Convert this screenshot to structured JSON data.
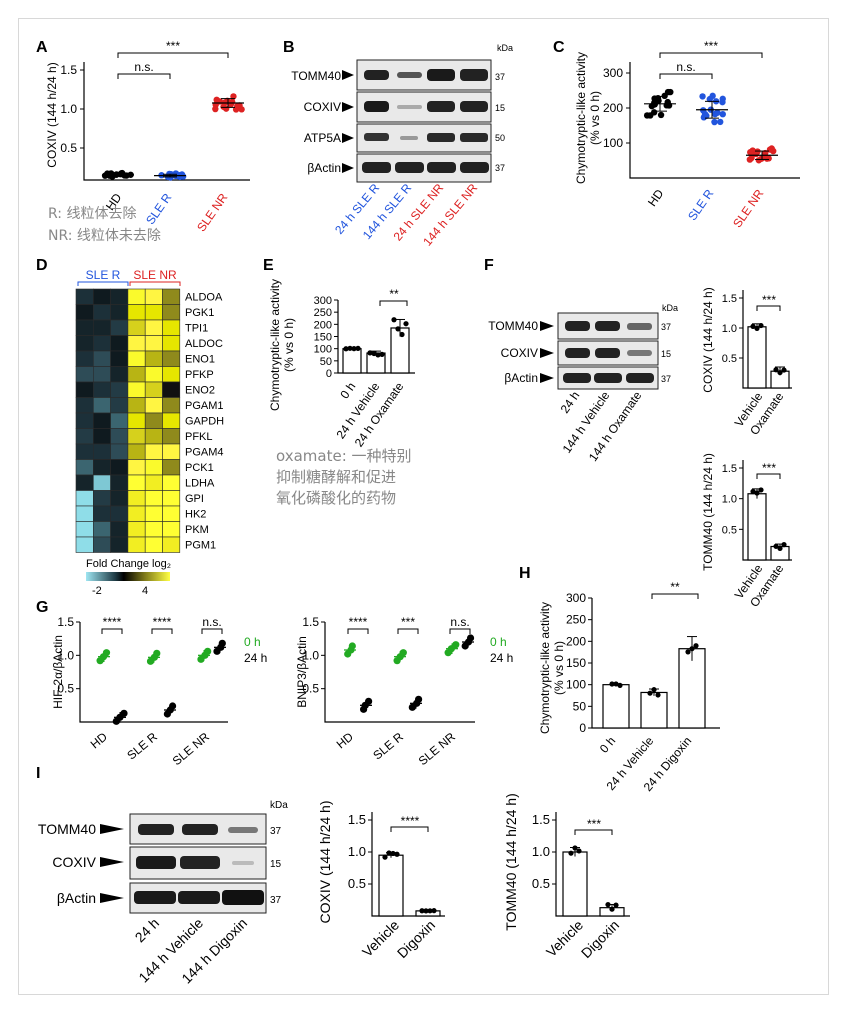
{
  "panels": {
    "A": {
      "label": "A",
      "ylabel": "COXIV (144 h/24 h)",
      "yticks": [
        "0.5",
        "1.0",
        "1.5"
      ],
      "categories": [
        "HD",
        "SLE R",
        "SLE NR"
      ],
      "category_colors": [
        "#000000",
        "#2255dd",
        "#dd2222"
      ],
      "sig": [
        "n.s.",
        "***"
      ],
      "note_lines": [
        "R: 线粒体去除",
        "NR: 线粒体未去除"
      ]
    },
    "B": {
      "label": "B",
      "kda": "kDa",
      "rows": [
        {
          "name": "TOMM40",
          "kda": "37"
        },
        {
          "name": "COXIV",
          "kda": "15"
        },
        {
          "name": "ATP5A",
          "kda": "50"
        },
        {
          "name": "βActin",
          "kda": "37"
        }
      ],
      "lanes": [
        "24 h SLE R",
        "144 h SLE R",
        "24 h SLE NR",
        "144 h SLE NR"
      ]
    },
    "C": {
      "label": "C",
      "ylabel_lines": [
        "Chymotryptic-like activity",
        "(% vs 0 h)"
      ],
      "yticks": [
        "100",
        "200",
        "300"
      ],
      "categories": [
        "HD",
        "SLE R",
        "SLE NR"
      ],
      "sig": [
        "n.s.",
        "***"
      ]
    },
    "D": {
      "label": "D",
      "group_labels": [
        "SLE R",
        "SLE NR"
      ],
      "genes": [
        "ALDOA",
        "PGK1",
        "TPI1",
        "ALDOC",
        "ENO1",
        "PFKP",
        "ENO2",
        "PGAM1",
        "GAPDH",
        "PFKL",
        "PGAM4",
        "PCK1",
        "LDHA",
        "GPI",
        "HK2",
        "PKM",
        "PGM1"
      ],
      "legend_title": "Fold Change log₂",
      "legend_ticks": [
        "-2",
        "4"
      ]
    },
    "E": {
      "label": "E",
      "ylabel_lines": [
        "Chymotryptic-like activity",
        "(% vs 0 h)"
      ],
      "yticks": [
        "0",
        "50",
        "100",
        "150",
        "200",
        "250",
        "300"
      ],
      "categories": [
        "0 h",
        "24 h Vehicle",
        "24 h Oxamate"
      ],
      "sig": "**",
      "note_lines": [
        "oxamate: 一种特别",
        "抑制糖酵解和促进",
        "氧化磷酸化的药物"
      ]
    },
    "F": {
      "label": "F",
      "kda": "kDa",
      "rows": [
        {
          "name": "TOMM40",
          "kda": "37"
        },
        {
          "name": "COXIV",
          "kda": "15"
        },
        {
          "name": "βActin",
          "kda": "37"
        }
      ],
      "lanes": [
        "24 h",
        "144 h Vehicle",
        "144 h Oxamate"
      ],
      "bar1": {
        "ylabel": "COXIV (144 h/24 h)",
        "yticks": [
          "0.5",
          "1.0",
          "1.5"
        ],
        "categories": [
          "Vehicle",
          "Oxamate"
        ],
        "sig": "***"
      },
      "bar2": {
        "ylabel": "TOMM40 (144 h/24 h)",
        "yticks": [
          "0.5",
          "1.0",
          "1.5"
        ],
        "categories": [
          "Vehicle",
          "Oxamate"
        ],
        "sig": "***"
      }
    },
    "G": {
      "label": "G",
      "legend": [
        "0 h",
        "24 h"
      ],
      "legend_colors": [
        "#22aa22",
        "#000000"
      ],
      "plot1": {
        "ylabel": "HIF-2α/βActin",
        "yticks": [
          "0.5",
          "1.0",
          "1.5"
        ],
        "categories": [
          "HD",
          "SLE R",
          "SLE NR"
        ],
        "sig": [
          "****",
          "****",
          "n.s."
        ]
      },
      "plot2": {
        "ylabel": "BNIP3/βActin",
        "yticks": [
          "0.5",
          "1.0",
          "1.5"
        ],
        "categories": [
          "HD",
          "SLE R",
          "SLE NR"
        ],
        "sig": [
          "****",
          "***",
          "n.s."
        ]
      }
    },
    "H": {
      "label": "H",
      "ylabel_lines": [
        "Chymotryptic-like activity",
        "(% vs 0 h)"
      ],
      "yticks": [
        "0",
        "50",
        "100",
        "150",
        "200",
        "250",
        "300"
      ],
      "categories": [
        "0 h",
        "24 h Vehicle",
        "24 h Digoxin"
      ],
      "sig": "**"
    },
    "I": {
      "label": "I",
      "kda": "kDa",
      "rows": [
        {
          "name": "TOMM40",
          "kda": "37"
        },
        {
          "name": "COXIV",
          "kda": "15"
        },
        {
          "name": "βActin",
          "kda": "37"
        }
      ],
      "lanes": [
        "24 h",
        "144 h Vehicle",
        "144 h Digoxin"
      ],
      "bar1": {
        "ylabel": "COXIV (144 h/24 h)",
        "yticks": [
          "0.5",
          "1.0",
          "1.5"
        ],
        "categories": [
          "Vehicle",
          "Digoxin"
        ],
        "sig": "****"
      },
      "bar2": {
        "ylabel": "TOMM40 (144 h/24 h)",
        "yticks": [
          "0.5",
          "1.0",
          "1.5"
        ],
        "categories": [
          "Vehicle",
          "Digoxin"
        ],
        "sig": "***"
      }
    }
  },
  "chart_data": [
    {
      "panel": "A",
      "type": "scatter",
      "categories": [
        "HD",
        "SLE R",
        "SLE NR"
      ],
      "means": [
        0.07,
        0.06,
        1.05
      ],
      "ylim": [
        0,
        1.5
      ]
    },
    {
      "panel": "C",
      "type": "scatter",
      "categories": [
        "HD",
        "SLE R",
        "SLE NR"
      ],
      "means": [
        212,
        195,
        65
      ],
      "ylim": [
        0,
        300
      ]
    },
    {
      "panel": "E",
      "type": "bar",
      "categories": [
        "0 h",
        "24 h Vehicle",
        "24 h Oxamate"
      ],
      "values": [
        100,
        82,
        185
      ],
      "ylim": [
        0,
        300
      ]
    },
    {
      "panel": "F-COXIV",
      "type": "bar",
      "categories": [
        "Vehicle",
        "Oxamate"
      ],
      "values": [
        1.02,
        0.28
      ],
      "ylim": [
        0,
        1.5
      ]
    },
    {
      "panel": "F-TOMM40",
      "type": "bar",
      "categories": [
        "Vehicle",
        "Oxamate"
      ],
      "values": [
        1.08,
        0.22
      ],
      "ylim": [
        0,
        1.5
      ]
    },
    {
      "panel": "G-HIF",
      "type": "scatter",
      "categories": [
        "HD",
        "SLE R",
        "SLE NR"
      ],
      "series": [
        {
          "name": "0 h",
          "values": [
            0.98,
            0.97,
            1.0
          ]
        },
        {
          "name": "24 h",
          "values": [
            0.07,
            0.18,
            1.12
          ]
        }
      ],
      "ylim": [
        0,
        1.5
      ]
    },
    {
      "panel": "G-BNIP3",
      "type": "scatter",
      "categories": [
        "HD",
        "SLE R",
        "SLE NR"
      ],
      "series": [
        {
          "name": "0 h",
          "values": [
            1.08,
            0.98,
            1.1
          ]
        },
        {
          "name": "24 h",
          "values": [
            0.25,
            0.28,
            1.2
          ]
        }
      ],
      "ylim": [
        0,
        1.5
      ]
    },
    {
      "panel": "H",
      "type": "bar",
      "categories": [
        "0 h",
        "24 h Vehicle",
        "24 h Digoxin"
      ],
      "values": [
        100,
        82,
        183
      ],
      "ylim": [
        0,
        300
      ]
    },
    {
      "panel": "I-COXIV",
      "type": "bar",
      "categories": [
        "Vehicle",
        "Digoxin"
      ],
      "values": [
        0.95,
        0.08
      ],
      "ylim": [
        0,
        1.5
      ]
    },
    {
      "panel": "I-TOMM40",
      "type": "bar",
      "categories": [
        "Vehicle",
        "Digoxin"
      ],
      "values": [
        1.0,
        0.13
      ],
      "ylim": [
        0,
        1.5
      ]
    }
  ]
}
